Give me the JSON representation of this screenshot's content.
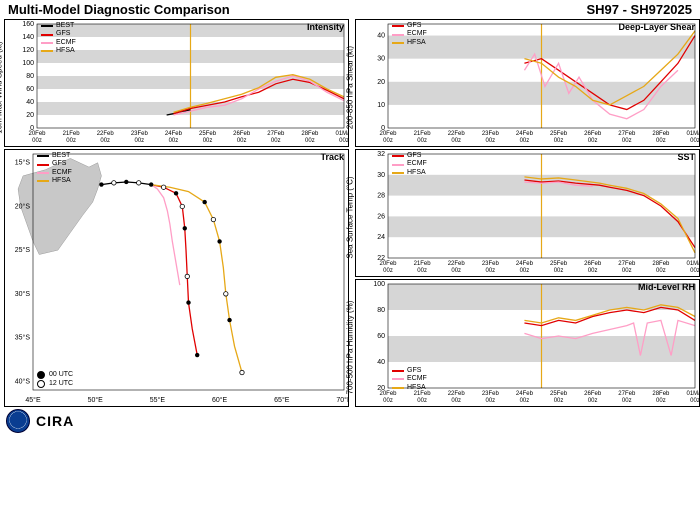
{
  "header": {
    "title": "Multi-Model Diagnostic Comparison",
    "storm_id": "SH97 - SH972025"
  },
  "colors": {
    "BEST": "#000000",
    "GFS": "#e00000",
    "ECMF": "#ff9ec6",
    "HFSA": "#e6a817",
    "band": "#d6d6d6",
    "grid": "#ffffff",
    "vline": "#e6a817",
    "land": "#c8c8c8"
  },
  "x_axis": {
    "ticks": [
      "20Feb\n00z",
      "21Feb\n00z",
      "22Feb\n00z",
      "23Feb\n00z",
      "24Feb\n00z",
      "25Feb\n00z",
      "26Feb\n00z",
      "27Feb\n00z",
      "28Feb\n00z",
      "01Mar\n00z"
    ],
    "vline_index": 4.5
  },
  "intensity": {
    "title": "Intensity",
    "ylabel": "10m Max Wind Speed (kt)",
    "ylim": [
      0,
      160
    ],
    "ytick_step": 20,
    "bands": [
      [
        20,
        40
      ],
      [
        60,
        80
      ],
      [
        100,
        120
      ],
      [
        140,
        160
      ]
    ],
    "series": {
      "BEST": [
        [
          3.8,
          20
        ],
        [
          4.0,
          22
        ],
        [
          4.2,
          25
        ],
        [
          4.5,
          28
        ]
      ],
      "GFS": [
        [
          4.0,
          22
        ],
        [
          4.5,
          30
        ],
        [
          5.0,
          35
        ],
        [
          5.5,
          40
        ],
        [
          6.0,
          48
        ],
        [
          6.5,
          55
        ],
        [
          7.0,
          68
        ],
        [
          7.5,
          75
        ],
        [
          8.0,
          70
        ],
        [
          8.5,
          58
        ],
        [
          9.0,
          45
        ]
      ],
      "ECMF": [
        [
          4.0,
          20
        ],
        [
          4.5,
          26
        ],
        [
          5.0,
          32
        ],
        [
          5.5,
          35
        ],
        [
          6.0,
          45
        ],
        [
          6.5,
          60
        ],
        [
          7.0,
          72
        ],
        [
          7.5,
          80
        ],
        [
          8.0,
          72
        ],
        [
          8.5,
          55
        ],
        [
          9.0,
          42
        ]
      ],
      "HFSA": [
        [
          4.0,
          24
        ],
        [
          4.5,
          32
        ],
        [
          5.0,
          38
        ],
        [
          5.5,
          45
        ],
        [
          6.0,
          52
        ],
        [
          6.5,
          62
        ],
        [
          7.0,
          78
        ],
        [
          7.5,
          82
        ],
        [
          8.0,
          75
        ],
        [
          8.5,
          60
        ],
        [
          9.0,
          48
        ]
      ]
    },
    "legend": [
      "BEST",
      "GFS",
      "ECMF",
      "HFSA"
    ],
    "legend_pos": "tl"
  },
  "shear": {
    "title": "Deep-Layer Shear",
    "ylabel": "200-850 hPa Shear (kt)",
    "ylim": [
      0,
      45
    ],
    "ytick_step": 10,
    "bands": [
      [
        10,
        20
      ],
      [
        30,
        40
      ]
    ],
    "series": {
      "GFS": [
        [
          4.0,
          28
        ],
        [
          4.5,
          30
        ],
        [
          5.0,
          25
        ],
        [
          5.5,
          20
        ],
        [
          6.0,
          15
        ],
        [
          6.5,
          10
        ],
        [
          7.0,
          8
        ],
        [
          7.5,
          12
        ],
        [
          8.0,
          20
        ],
        [
          8.5,
          28
        ],
        [
          9.0,
          40
        ]
      ],
      "ECMF": [
        [
          4.0,
          25
        ],
        [
          4.3,
          32
        ],
        [
          4.6,
          18
        ],
        [
          5.0,
          28
        ],
        [
          5.3,
          15
        ],
        [
          5.6,
          22
        ],
        [
          6.0,
          12
        ],
        [
          6.5,
          6
        ],
        [
          7.0,
          4
        ],
        [
          7.5,
          8
        ],
        [
          8.0,
          18
        ],
        [
          8.5,
          25
        ]
      ],
      "HFSA": [
        [
          4.0,
          30
        ],
        [
          4.5,
          28
        ],
        [
          5.0,
          22
        ],
        [
          5.5,
          18
        ],
        [
          6.0,
          12
        ],
        [
          6.5,
          10
        ],
        [
          7.0,
          14
        ],
        [
          7.5,
          18
        ],
        [
          8.0,
          25
        ],
        [
          8.5,
          32
        ],
        [
          9.0,
          42
        ]
      ]
    },
    "legend": [
      "GFS",
      "ECMF",
      "HFSA"
    ],
    "legend_pos": "tl"
  },
  "sst": {
    "title": "SST",
    "ylabel": "Sea Surface Temp (°C)",
    "ylim": [
      22,
      32
    ],
    "ytick_step": 2,
    "bands": [
      [
        24,
        26
      ],
      [
        28,
        30
      ]
    ],
    "series": {
      "GFS": [
        [
          4.0,
          29.5
        ],
        [
          4.5,
          29.3
        ],
        [
          5.0,
          29.4
        ],
        [
          5.5,
          29.2
        ],
        [
          6.2,
          29.0
        ],
        [
          6.5,
          28.8
        ],
        [
          7.0,
          28.5
        ],
        [
          7.5,
          28.0
        ],
        [
          8.0,
          27.0
        ],
        [
          8.5,
          25.5
        ],
        [
          9.0,
          23.0
        ]
      ],
      "ECMF": [
        [
          4.0,
          29.3
        ],
        [
          4.5,
          29.2
        ],
        [
          5.0,
          29.3
        ],
        [
          5.5,
          29.0
        ],
        [
          6.0,
          28.9
        ]
      ],
      "HFSA": [
        [
          4.0,
          29.8
        ],
        [
          4.5,
          29.6
        ],
        [
          5.0,
          29.7
        ],
        [
          5.5,
          29.5
        ],
        [
          6.2,
          29.2
        ],
        [
          6.5,
          29.0
        ],
        [
          7.0,
          28.7
        ],
        [
          7.5,
          28.2
        ],
        [
          8.0,
          27.2
        ],
        [
          8.5,
          25.8
        ],
        [
          9.0,
          22.5
        ]
      ]
    },
    "legend": [
      "GFS",
      "ECMF",
      "HFSA"
    ],
    "legend_pos": "tl"
  },
  "rh": {
    "title": "Mid-Level RH",
    "ylabel": "700-500 hPa Humidity (%)",
    "ylim": [
      20,
      100
    ],
    "ytick_step": 20,
    "bands": [
      [
        40,
        60
      ],
      [
        80,
        100
      ]
    ],
    "series": {
      "GFS": [
        [
          4.0,
          70
        ],
        [
          4.5,
          68
        ],
        [
          5.0,
          72
        ],
        [
          5.5,
          70
        ],
        [
          6.0,
          75
        ],
        [
          6.5,
          78
        ],
        [
          7.0,
          80
        ],
        [
          7.5,
          78
        ],
        [
          8.0,
          82
        ],
        [
          8.5,
          80
        ],
        [
          9.0,
          72
        ]
      ],
      "ECMF": [
        [
          4.0,
          62
        ],
        [
          4.5,
          58
        ],
        [
          5.0,
          60
        ],
        [
          5.5,
          58
        ],
        [
          6.0,
          62
        ],
        [
          6.5,
          65
        ],
        [
          7.0,
          68
        ],
        [
          7.2,
          70
        ],
        [
          7.4,
          45
        ],
        [
          7.6,
          70
        ],
        [
          8.0,
          72
        ],
        [
          8.3,
          45
        ],
        [
          8.5,
          72
        ],
        [
          9.0,
          68
        ]
      ],
      "HFSA": [
        [
          4.0,
          72
        ],
        [
          4.5,
          70
        ],
        [
          5.0,
          74
        ],
        [
          5.5,
          72
        ],
        [
          6.0,
          76
        ],
        [
          6.5,
          80
        ],
        [
          7.0,
          82
        ],
        [
          7.5,
          80
        ],
        [
          8.0,
          84
        ],
        [
          8.5,
          82
        ],
        [
          9.0,
          75
        ]
      ]
    },
    "legend": [
      "GFS",
      "ECMF",
      "HFSA"
    ],
    "legend_pos": "bl"
  },
  "track": {
    "title": "Track",
    "xlim": [
      45,
      70
    ],
    "ylim": [
      41,
      14
    ],
    "xtick_step": 5,
    "ytick_step": 5,
    "madagascar": [
      [
        49.5,
        15.5
      ],
      [
        50.2,
        15.0
      ],
      [
        50.5,
        16.5
      ],
      [
        50.2,
        18.0
      ],
      [
        49.8,
        19.5
      ],
      [
        49.0,
        21.0
      ],
      [
        48.0,
        23.0
      ],
      [
        47.0,
        25.0
      ],
      [
        45.5,
        25.5
      ],
      [
        45.0,
        24.0
      ],
      [
        44.5,
        22.0
      ],
      [
        44.0,
        20.0
      ],
      [
        43.8,
        18.0
      ],
      [
        44.2,
        16.5
      ],
      [
        46.0,
        15.8
      ],
      [
        48.0,
        14.5
      ]
    ],
    "series": {
      "BEST": [
        [
          50.5,
          17.5
        ],
        [
          51.5,
          17.3
        ],
        [
          52.5,
          17.2
        ],
        [
          53.5,
          17.3
        ],
        [
          54.5,
          17.5
        ]
      ],
      "GFS": [
        [
          54.5,
          17.5
        ],
        [
          55.5,
          17.8
        ],
        [
          56.5,
          18.5
        ],
        [
          57.0,
          20.0
        ],
        [
          57.2,
          22.5
        ],
        [
          57.3,
          25.0
        ],
        [
          57.4,
          28.0
        ],
        [
          57.5,
          31.0
        ],
        [
          57.8,
          34.0
        ],
        [
          58.2,
          37.0
        ]
      ],
      "ECMF": [
        [
          54.5,
          17.5
        ],
        [
          55.0,
          18.0
        ],
        [
          55.5,
          19.0
        ],
        [
          55.8,
          20.5
        ],
        [
          56.0,
          22.0
        ],
        [
          56.2,
          24.0
        ],
        [
          56.5,
          26.5
        ],
        [
          56.8,
          29.0
        ]
      ],
      "HFSA": [
        [
          54.5,
          17.5
        ],
        [
          56.0,
          17.8
        ],
        [
          57.5,
          18.3
        ],
        [
          58.8,
          19.5
        ],
        [
          59.5,
          21.5
        ],
        [
          60.0,
          24.0
        ],
        [
          60.3,
          27.0
        ],
        [
          60.5,
          30.0
        ],
        [
          60.8,
          33.0
        ],
        [
          61.2,
          36.0
        ],
        [
          61.8,
          39.0
        ]
      ]
    },
    "dots00": [
      [
        50.5,
        17.5
      ],
      [
        52.5,
        17.2
      ],
      [
        54.5,
        17.5
      ],
      [
        56.5,
        18.5
      ],
      [
        57.2,
        22.5
      ],
      [
        57.5,
        31.0
      ],
      [
        58.2,
        37.0
      ],
      [
        58.8,
        19.5
      ],
      [
        60.0,
        24.0
      ],
      [
        60.8,
        33.0
      ]
    ],
    "dots12": [
      [
        51.5,
        17.3
      ],
      [
        53.5,
        17.3
      ],
      [
        55.5,
        17.8
      ],
      [
        57.0,
        20.0
      ],
      [
        57.4,
        28.0
      ],
      [
        59.5,
        21.5
      ],
      [
        60.5,
        30.0
      ],
      [
        61.8,
        39.0
      ]
    ],
    "legend": [
      "BEST",
      "GFS",
      "ECMF",
      "HFSA"
    ],
    "legend_pos": "tl",
    "utc_legend": [
      {
        "label": "00 UTC",
        "fill": true
      },
      {
        "label": "12 UTC",
        "fill": false
      }
    ]
  },
  "footer": {
    "org": "CIRA"
  }
}
